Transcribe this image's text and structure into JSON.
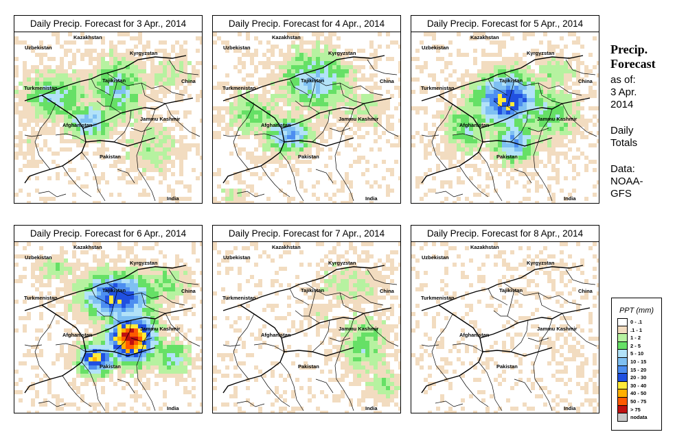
{
  "panels": [
    {
      "title": "Daily Precip. Forecast for  3 Apr., 2014",
      "intensity": 1.0
    },
    {
      "title": "Daily Precip. Forecast for  4 Apr., 2014",
      "intensity": 0.9
    },
    {
      "title": "Daily Precip. Forecast for  5 Apr., 2014",
      "intensity": 1.1
    },
    {
      "title": "Daily Precip. Forecast for  6 Apr., 2014",
      "intensity": 1.25
    },
    {
      "title": "Daily Precip. Forecast for  7 Apr., 2014",
      "intensity": 0.6
    },
    {
      "title": "Daily Precip. Forecast for  8 Apr., 2014",
      "intensity": 0.35
    }
  ],
  "map_labels": {
    "kazakhstan": "Kazakhstan",
    "uzbekistan": "Uzbekistan",
    "kyrgyzstan": "Kyrgyzstan",
    "tajikistan": "Tajikistan",
    "china": "China",
    "turkmenistan": "Turkmenistan",
    "afghanistan": "Afghanistan",
    "jammu_kashmir": "Jammu Kashmir",
    "pakistan": "Pakistan",
    "india": "India"
  },
  "sidebar": {
    "title_line1": "Precip.",
    "title_line2": "Forecast",
    "asof_line1": "as of:",
    "asof_line2": "3 Apr.",
    "asof_line3": "2014",
    "totals_line1": "Daily",
    "totals_line2": "Totals",
    "data_line1": "Data:",
    "data_line2": "NOAA-",
    "data_line3": "GFS"
  },
  "legend": {
    "title": "PPT (mm)",
    "items": [
      {
        "label": "0 - .1",
        "color": "#ffffff"
      },
      {
        "label": ".1 - 1",
        "color": "#f2dcc0"
      },
      {
        "label": "1 - 2",
        "color": "#b6f2a0"
      },
      {
        "label": "2 - 5",
        "color": "#66e066"
      },
      {
        "label": "5 - 10",
        "color": "#b2e2f8"
      },
      {
        "label": "10 - 15",
        "color": "#7fc0f2"
      },
      {
        "label": "15 - 20",
        "color": "#4d8ef0"
      },
      {
        "label": "20 - 30",
        "color": "#2050e0"
      },
      {
        "label": "30 - 40",
        "color": "#ffea3a"
      },
      {
        "label": "40 - 50",
        "color": "#ffb000"
      },
      {
        "label": "50 - 75",
        "color": "#ff5a00"
      },
      {
        "label": "> 75",
        "color": "#c01010"
      },
      {
        "label": "nodata",
        "color": "#c8c8c8"
      }
    ]
  }
}
